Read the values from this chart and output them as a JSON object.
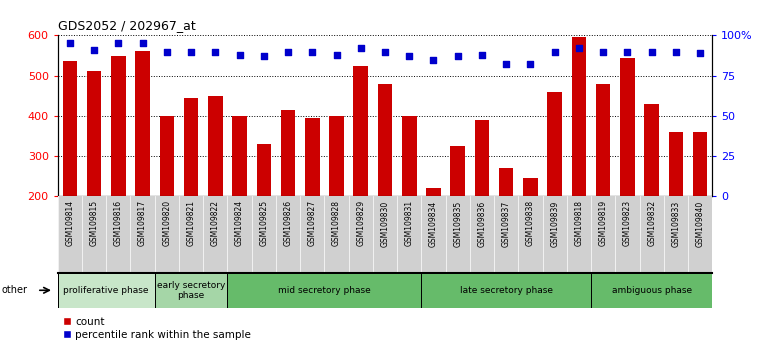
{
  "title": "GDS2052 / 202967_at",
  "samples": [
    "GSM109814",
    "GSM109815",
    "GSM109816",
    "GSM109817",
    "GSM109820",
    "GSM109821",
    "GSM109822",
    "GSM109824",
    "GSM109825",
    "GSM109826",
    "GSM109827",
    "GSM109828",
    "GSM109829",
    "GSM109830",
    "GSM109831",
    "GSM109834",
    "GSM109835",
    "GSM109836",
    "GSM109837",
    "GSM109838",
    "GSM109839",
    "GSM109818",
    "GSM109819",
    "GSM109823",
    "GSM109832",
    "GSM109833",
    "GSM109840"
  ],
  "counts": [
    537,
    511,
    549,
    561,
    400,
    445,
    450,
    400,
    330,
    415,
    395,
    400,
    525,
    480,
    400,
    220,
    325,
    390,
    270,
    245,
    460,
    595,
    480,
    545,
    430,
    360,
    360
  ],
  "percentiles": [
    95,
    91,
    95,
    95,
    90,
    90,
    90,
    88,
    87,
    90,
    90,
    88,
    92,
    90,
    87,
    85,
    87,
    88,
    82,
    82,
    90,
    92,
    90,
    90,
    90,
    90,
    89
  ],
  "phase_configs": [
    {
      "label": "proliferative phase",
      "start": 0,
      "end": 3,
      "color": "#c8e6c9"
    },
    {
      "label": "early secretory\nphase",
      "start": 4,
      "end": 6,
      "color": "#a5d6a7"
    },
    {
      "label": "mid secretory phase",
      "start": 7,
      "end": 14,
      "color": "#66bb6a"
    },
    {
      "label": "late secretory phase",
      "start": 15,
      "end": 21,
      "color": "#66bb6a"
    },
    {
      "label": "ambiguous phase",
      "start": 22,
      "end": 26,
      "color": "#66bb6a"
    }
  ],
  "bar_color": "#cc0000",
  "dot_color": "#0000cc",
  "ylim_left": [
    200,
    600
  ],
  "ylim_right": [
    0,
    100
  ],
  "yticks_left": [
    200,
    300,
    400,
    500,
    600
  ],
  "yticks_right": [
    0,
    25,
    50,
    75,
    100
  ],
  "bar_baseline": 200,
  "tick_bg_color": "#d0d0d0"
}
